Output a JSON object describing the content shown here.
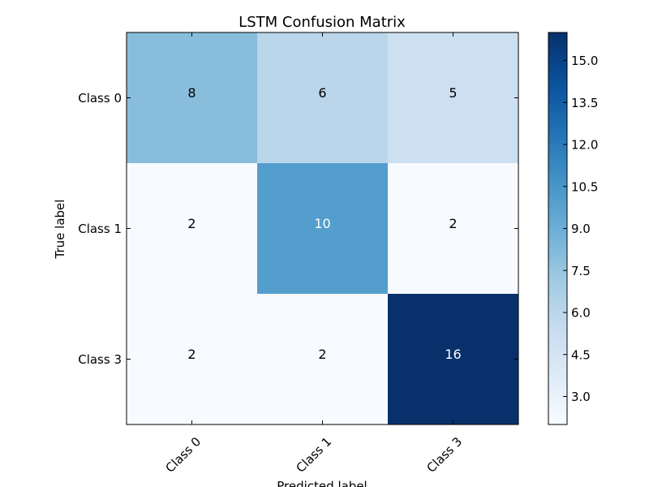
{
  "chart_data": {
    "type": "heatmap",
    "title": "LSTM Confusion Matrix",
    "xlabel": "Predicted label",
    "ylabel": "True label",
    "x_categories": [
      "Class 0",
      "Class 1",
      "Class 3"
    ],
    "y_categories": [
      "Class 0",
      "Class 1",
      "Class 3"
    ],
    "values": [
      [
        8,
        6,
        5
      ],
      [
        2,
        10,
        2
      ],
      [
        2,
        2,
        16
      ]
    ],
    "colormap": "Blues",
    "colorbar": {
      "min": 2,
      "max": 16,
      "ticks": [
        3.0,
        4.5,
        6.0,
        7.5,
        9.0,
        10.5,
        12.0,
        13.5,
        15.0
      ],
      "tick_labels": [
        "3.0",
        "4.5",
        "6.0",
        "7.5",
        "9.0",
        "10.5",
        "12.0",
        "13.5",
        "15.0"
      ]
    }
  }
}
